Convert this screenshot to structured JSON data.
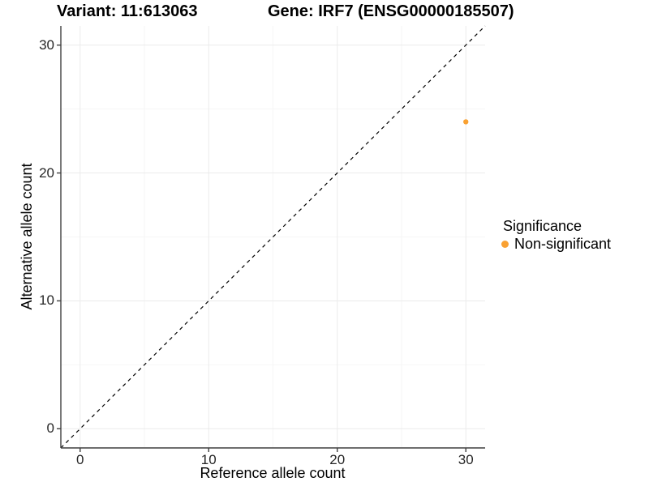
{
  "title": {
    "variant": "Variant: 11:613063",
    "gene": "Gene: IRF7 (ENSG00000185507)"
  },
  "legend": {
    "title": "Significance",
    "items": [
      {
        "label": "Non-significant",
        "color": "#F9A132"
      }
    ]
  },
  "colors": {
    "point": "#F9A132",
    "axis_line": "#3f3f3f",
    "tick_text": "#262626",
    "grid_major": "#ebebeb",
    "grid_minor": "#f6f6f6",
    "reference_line": "#000000",
    "background": "#ffffff"
  },
  "chart_data": {
    "type": "scatter",
    "title": "Variant: 11:613063   Gene: IRF7 (ENSG00000185507)",
    "xlabel": "Reference allele count",
    "ylabel": "Alternative allele count",
    "xlim": [
      -1.5,
      31.5
    ],
    "ylim": [
      -1.5,
      31.5
    ],
    "x_ticks": [
      0,
      10,
      20,
      30
    ],
    "y_ticks": [
      0,
      10,
      20,
      30
    ],
    "x_minor_ticks": [
      5,
      15,
      25
    ],
    "y_minor_ticks": [
      5,
      15,
      25
    ],
    "grid": true,
    "legend_position": "right",
    "series": [
      {
        "name": "Non-significant",
        "color": "#F9A132",
        "points": [
          {
            "x": 30,
            "y": 24
          }
        ]
      }
    ],
    "reference_line": {
      "type": "identity",
      "style": "dashed",
      "from": [
        -1.5,
        -1.5
      ],
      "to": [
        31.5,
        31.5
      ],
      "color": "#000000"
    }
  }
}
